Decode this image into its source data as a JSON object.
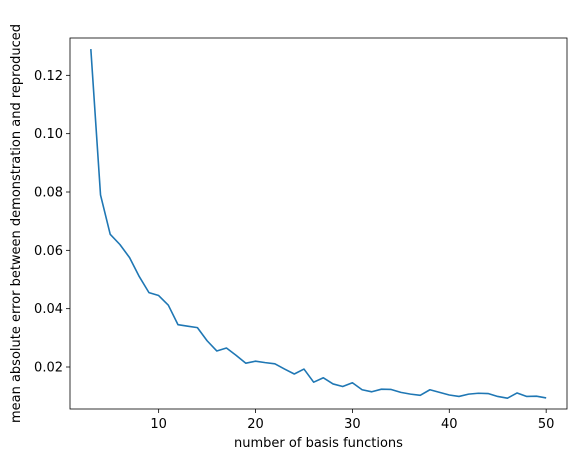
{
  "chart_data": {
    "type": "line",
    "title": "",
    "xlabel": "number of basis functions",
    "ylabel": "mean absolute error between demonstration and reproduced",
    "xlim": [
      0.85,
      52.15
    ],
    "ylim": [
      0.0056,
      0.1328
    ],
    "xticks": [
      10,
      20,
      30,
      40,
      50
    ],
    "xtick_labels": [
      "10",
      "20",
      "30",
      "40",
      "50"
    ],
    "yticks": [
      0.02,
      0.04,
      0.06,
      0.08,
      0.1,
      0.12
    ],
    "ytick_labels": [
      "0.02",
      "0.04",
      "0.06",
      "0.08",
      "0.10",
      "0.12"
    ],
    "grid": false,
    "legend": "none",
    "series": [
      {
        "color": "#1f77b4",
        "x": [
          3,
          4,
          5,
          6,
          7,
          8,
          9,
          10,
          11,
          12,
          13,
          14,
          15,
          16,
          17,
          18,
          19,
          20,
          21,
          22,
          23,
          24,
          25,
          26,
          27,
          28,
          29,
          30,
          31,
          32,
          33,
          34,
          35,
          36,
          37,
          38,
          39,
          40,
          41,
          42,
          43,
          44,
          45,
          46,
          47,
          48,
          49,
          50
        ],
        "y": [
          0.129,
          0.079,
          0.0655,
          0.062,
          0.0575,
          0.051,
          0.0455,
          0.0445,
          0.0412,
          0.0345,
          0.034,
          0.0335,
          0.029,
          0.0255,
          0.0265,
          0.024,
          0.0213,
          0.022,
          0.0215,
          0.0211,
          0.0193,
          0.0176,
          0.0193,
          0.0148,
          0.0163,
          0.0142,
          0.0133,
          0.0146,
          0.0122,
          0.0115,
          0.0124,
          0.0123,
          0.0113,
          0.0107,
          0.0103,
          0.0122,
          0.0113,
          0.0104,
          0.0099,
          0.0107,
          0.011,
          0.0109,
          0.0099,
          0.0093,
          0.0111,
          0.0099,
          0.01,
          0.0094
        ]
      }
    ]
  }
}
